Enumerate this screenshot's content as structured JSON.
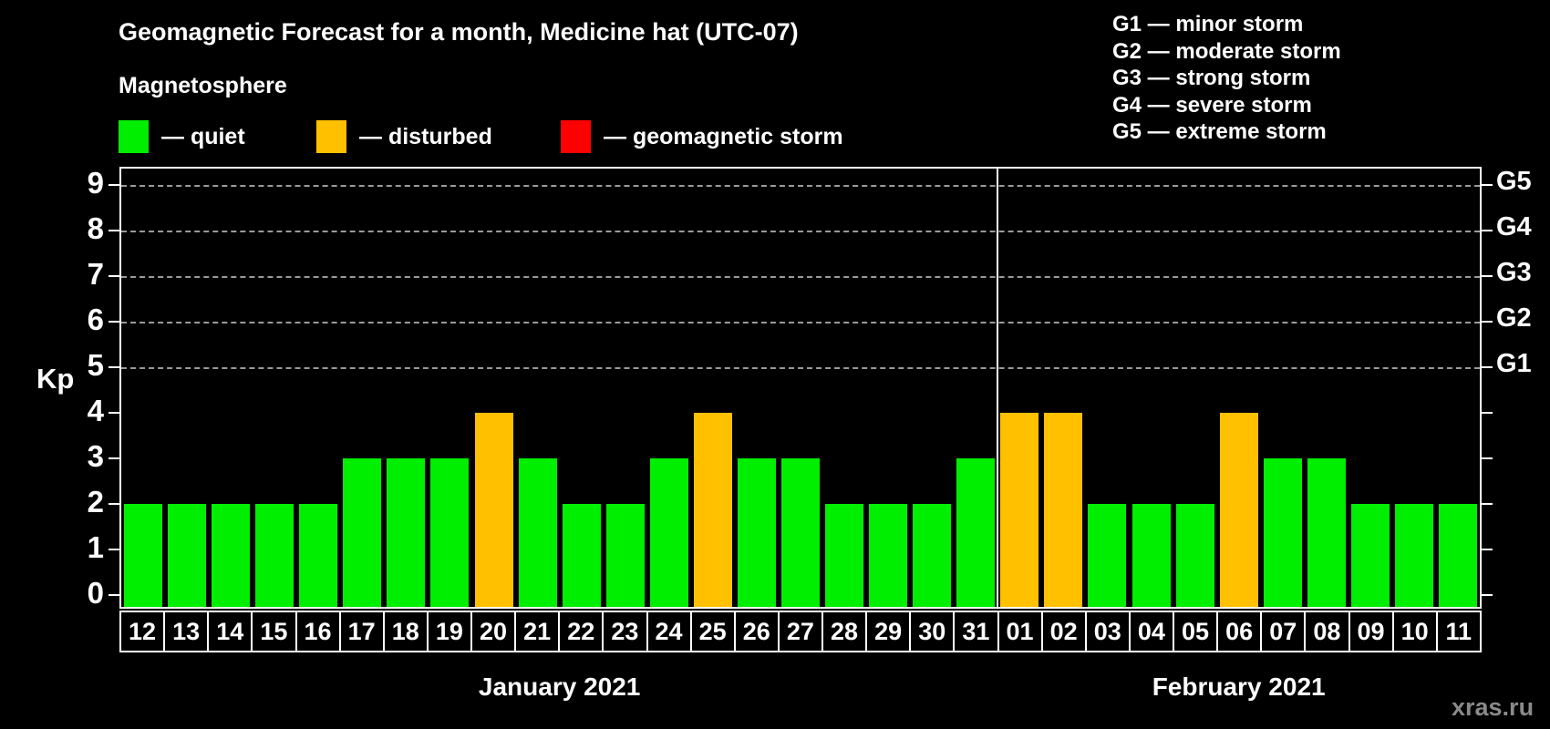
{
  "header": {
    "title": "Geomagnetic Forecast for a month, Medicine hat (UTC-07)",
    "subtitle": "Magnetosphere"
  },
  "legend": {
    "items": [
      {
        "name": "quiet",
        "label": "— quiet",
        "color": "#00EE00",
        "x": 130
      },
      {
        "name": "disturbed",
        "label": "— disturbed",
        "color": "#FFC000",
        "x": 347
      },
      {
        "name": "storm",
        "label": "— geomagnetic storm",
        "color": "#FF0000",
        "x": 615
      }
    ]
  },
  "storm_scale_legend": [
    "G1 — minor storm",
    "G2 — moderate storm",
    "G3 — strong storm",
    "G4 — severe storm",
    "G5 — extreme storm"
  ],
  "watermark": "xras.ru",
  "chart_data": {
    "type": "bar",
    "title": "Geomagnetic Forecast for a month, Medicine hat (UTC-07)",
    "xlabel": "",
    "ylabel": "Kp",
    "ylim": [
      0,
      9
    ],
    "yticks": [
      0,
      1,
      2,
      3,
      4,
      5,
      6,
      7,
      8,
      9
    ],
    "gridlines_at_kp": [
      5,
      6,
      7,
      8,
      9
    ],
    "grid_style": "dashed",
    "right_axis_labels": [
      {
        "kp": 5,
        "label": "G1"
      },
      {
        "kp": 6,
        "label": "G2"
      },
      {
        "kp": 7,
        "label": "G3"
      },
      {
        "kp": 8,
        "label": "G4"
      },
      {
        "kp": 9,
        "label": "G5"
      }
    ],
    "status_colors": {
      "quiet": "#00EE00",
      "disturbed": "#FFC000",
      "storm": "#FF0000"
    },
    "months": [
      {
        "label": "January 2021",
        "points": [
          {
            "day": "12",
            "kp": 2,
            "status": "quiet"
          },
          {
            "day": "13",
            "kp": 2,
            "status": "quiet"
          },
          {
            "day": "14",
            "kp": 2,
            "status": "quiet"
          },
          {
            "day": "15",
            "kp": 2,
            "status": "quiet"
          },
          {
            "day": "16",
            "kp": 2,
            "status": "quiet"
          },
          {
            "day": "17",
            "kp": 3,
            "status": "quiet"
          },
          {
            "day": "18",
            "kp": 3,
            "status": "quiet"
          },
          {
            "day": "19",
            "kp": 3,
            "status": "quiet"
          },
          {
            "day": "20",
            "kp": 4,
            "status": "disturbed"
          },
          {
            "day": "21",
            "kp": 3,
            "status": "quiet"
          },
          {
            "day": "22",
            "kp": 2,
            "status": "quiet"
          },
          {
            "day": "23",
            "kp": 2,
            "status": "quiet"
          },
          {
            "day": "24",
            "kp": 3,
            "status": "quiet"
          },
          {
            "day": "25",
            "kp": 4,
            "status": "disturbed"
          },
          {
            "day": "26",
            "kp": 3,
            "status": "quiet"
          },
          {
            "day": "27",
            "kp": 3,
            "status": "quiet"
          },
          {
            "day": "28",
            "kp": 2,
            "status": "quiet"
          },
          {
            "day": "29",
            "kp": 2,
            "status": "quiet"
          },
          {
            "day": "30",
            "kp": 2,
            "status": "quiet"
          },
          {
            "day": "31",
            "kp": 3,
            "status": "quiet"
          }
        ]
      },
      {
        "label": "February 2021",
        "points": [
          {
            "day": "01",
            "kp": 4,
            "status": "disturbed"
          },
          {
            "day": "02",
            "kp": 4,
            "status": "disturbed"
          },
          {
            "day": "03",
            "kp": 2,
            "status": "quiet"
          },
          {
            "day": "04",
            "kp": 2,
            "status": "quiet"
          },
          {
            "day": "05",
            "kp": 2,
            "status": "quiet"
          },
          {
            "day": "06",
            "kp": 4,
            "status": "disturbed"
          },
          {
            "day": "07",
            "kp": 3,
            "status": "quiet"
          },
          {
            "day": "08",
            "kp": 3,
            "status": "quiet"
          },
          {
            "day": "09",
            "kp": 2,
            "status": "quiet"
          },
          {
            "day": "10",
            "kp": 2,
            "status": "quiet"
          },
          {
            "day": "11",
            "kp": 2,
            "status": "quiet"
          }
        ]
      }
    ]
  }
}
